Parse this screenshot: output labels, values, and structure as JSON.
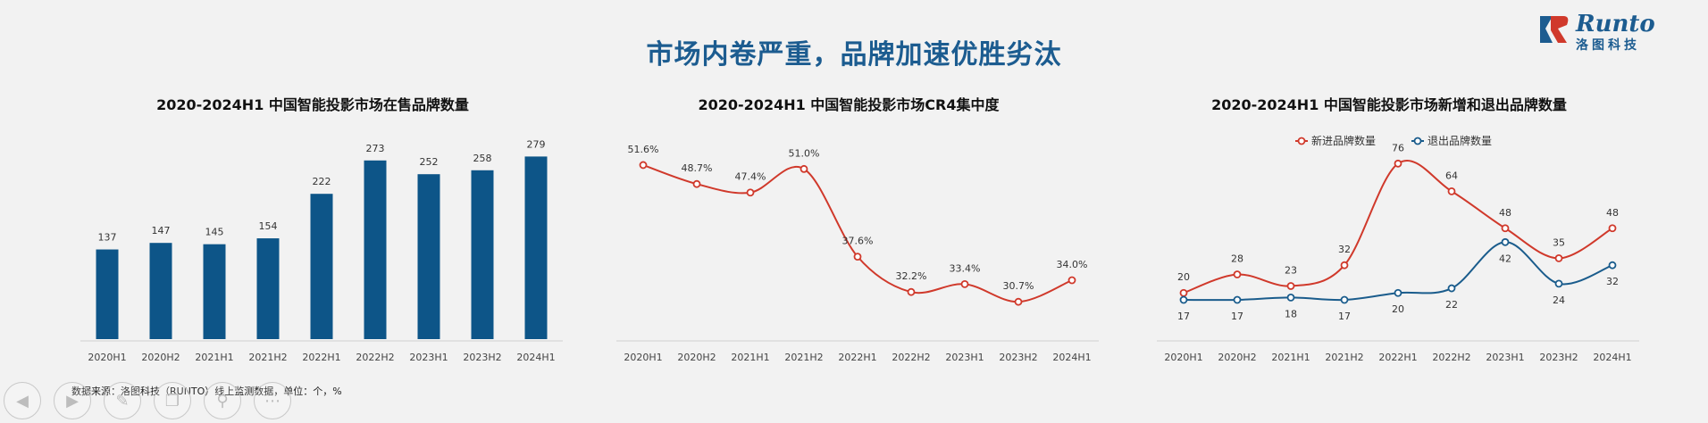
{
  "title": "市场内卷严重，品牌加速优胜劣汰",
  "logo": {
    "word": "Runto",
    "cn": "洛图科技"
  },
  "source": "数据来源：洛图科技（RUNTO）线上监测数据，单位：个，%",
  "colors": {
    "title": "#1c5c90",
    "bar": "#0d5588",
    "red": "#d0392b",
    "blue": "#1a5c8c"
  },
  "controls": [
    "prev-icon",
    "play-icon",
    "pen-icon",
    "copy-icon",
    "zoom-icon",
    "more-icon"
  ],
  "chart_data": [
    {
      "type": "bar",
      "title": "2020-2024H1 中国智能投影市场在售品牌数量",
      "categories": [
        "2020H1",
        "2020H2",
        "2021H1",
        "2021H2",
        "2022H1",
        "2022H2",
        "2023H1",
        "2023H2",
        "2024H1"
      ],
      "values": [
        137,
        147,
        145,
        154,
        222,
        273,
        252,
        258,
        279
      ],
      "ylim": [
        0,
        300
      ],
      "grid": false
    },
    {
      "type": "line",
      "title": "2020-2024H1 中国智能投影市场CR4集中度",
      "categories": [
        "2020H1",
        "2020H2",
        "2021H1",
        "2021H2",
        "2022H1",
        "2022H2",
        "2023H1",
        "2023H2",
        "2024H1"
      ],
      "values": [
        51.6,
        48.7,
        47.4,
        51.0,
        37.6,
        32.2,
        33.4,
        30.7,
        34.0
      ],
      "labels": [
        "51.6%",
        "48.7%",
        "47.4%",
        "51.0%",
        "37.6%",
        "32.2%",
        "33.4%",
        "30.7%",
        "34.0%"
      ],
      "ylim": [
        25,
        55
      ],
      "grid": false
    },
    {
      "type": "line",
      "title": "2020-2024H1 中国智能投影市场新增和退出品牌数量",
      "categories": [
        "2020H1",
        "2020H2",
        "2021H1",
        "2021H2",
        "2022H1",
        "2022H2",
        "2023H1",
        "2023H2",
        "2024H1"
      ],
      "series": [
        {
          "name": "新进品牌数量",
          "values": [
            20,
            28,
            23,
            32,
            76,
            64,
            48,
            35,
            48
          ]
        },
        {
          "name": "退出品牌数量",
          "values": [
            17,
            17,
            18,
            17,
            20,
            22,
            42,
            24,
            32
          ]
        }
      ],
      "ylim": [
        0,
        85
      ],
      "legend": "top-center",
      "grid": false
    }
  ]
}
